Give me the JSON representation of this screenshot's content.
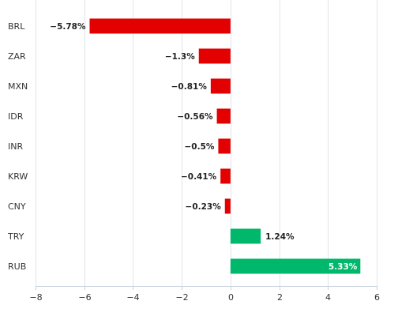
{
  "chart_data": {
    "type": "bar",
    "orientation": "horizontal",
    "title": "",
    "xlabel": "",
    "ylabel": "",
    "categories": [
      "BRL",
      "ZAR",
      "MXN",
      "IDR",
      "INR",
      "KRW",
      "CNY",
      "TRY",
      "RUB"
    ],
    "values": [
      -5.78,
      -1.3,
      -0.81,
      -0.56,
      -0.5,
      -0.41,
      -0.23,
      1.24,
      5.33
    ],
    "value_labels": [
      "−5.78%",
      "−1.3%",
      "−0.81%",
      "−0.56%",
      "−0.5%",
      "−0.41%",
      "−0.23%",
      "1.24%",
      "5.33%"
    ],
    "xlim": [
      -8,
      6
    ],
    "xticks": [
      -8,
      -6,
      -4,
      -2,
      0,
      2,
      4,
      6
    ],
    "xtick_labels": [
      "−8",
      "−6",
      "−4",
      "−2",
      "0",
      "2",
      "4",
      "6"
    ],
    "grid": true,
    "legend": "none",
    "colors": {
      "negative": "#e30000",
      "positive": "#00b86b",
      "grid": "#dfe6ec",
      "axis": "#c6d0da"
    }
  }
}
